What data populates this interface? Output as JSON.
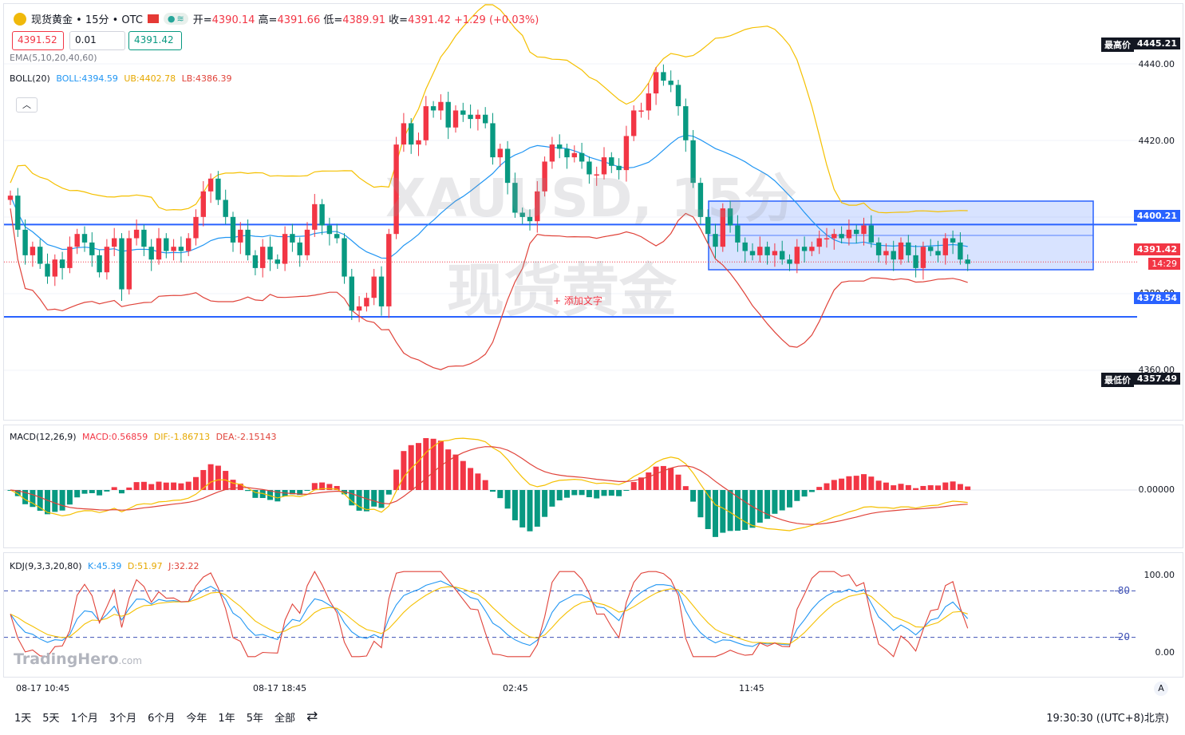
{
  "header": {
    "title": "现货黄金 • 15分 • OTC",
    "open_label": "开=",
    "open": "4390.14",
    "high_label": "高=",
    "high": "4391.66",
    "low_label": "低=",
    "low": "4389.91",
    "close_label": "收=",
    "close": "4391.42",
    "change": "+1.29 (+0.03%)",
    "pill_icon": "dots-icon",
    "pill_text": "≋"
  },
  "trade": {
    "sell": "4391.52",
    "spread": "0.01",
    "buy": "4391.42"
  },
  "indicators": {
    "ema": "EMA(5,10,20,40,60)",
    "boll_label": "BOLL(20)",
    "boll": "BOLL:4394.59",
    "ub": "UB:4402.78",
    "lb": "LB:4386.39",
    "macd_label": "MACD(12,26,9)",
    "macd": "MACD:0.56859",
    "dif": "DIF:-1.86713",
    "dea": "DEA:-2.15143",
    "kdj_label": "KDJ(9,3,3,20,80)",
    "k": "K:45.39",
    "d": "D:51.97",
    "j": "J:32.22"
  },
  "price_axis": {
    "ticks": [
      "4440.00",
      "4420.00",
      "4380.00",
      "4360.00"
    ],
    "max_label": "最高价",
    "max_value": "4445.21",
    "min_label": "最低价",
    "min_value": "4357.49",
    "line_upper": "4400.21",
    "line_lower": "4378.54",
    "current": "4391.42",
    "countdown": "14:29"
  },
  "macd_axis": {
    "zero": "0.00000"
  },
  "kdj_axis": {
    "t100": "100.00",
    "t0": "0.00",
    "l80": "-80",
    "l20": "-20"
  },
  "watermark": {
    "symbol": "XAUUSD, 15分",
    "name": "现货黄金",
    "text_tool": "+ 添加文字",
    "brand": "TradingHero",
    "brand_suffix": ".com"
  },
  "time_axis": {
    "labels": [
      "08-17 10:45",
      "08-17 18:45",
      "02:45",
      "11:45"
    ],
    "right_icon": "A"
  },
  "bottom": {
    "ranges": [
      "1天",
      "5天",
      "1个月",
      "3个月",
      "6个月",
      "今年",
      "1年",
      "5年",
      "全部"
    ],
    "time": "19:30:30 ((UTC+8)北京)"
  },
  "colors": {
    "up": "#f23645",
    "down": "#089981",
    "boll_mid": "#2196f3",
    "boll_up": "#f5c000",
    "boll_low": "#e0433a",
    "line": "#2962ff"
  },
  "chart_data": {
    "type": "candlestick",
    "y_range": [
      4354,
      4452
    ],
    "ohlc_close": [
      4407,
      4399,
      4393,
      4395,
      4391,
      4388,
      4392,
      4390,
      4395,
      4398,
      4396,
      4393,
      4389,
      4395,
      4397,
      4385,
      4397,
      4399,
      4395,
      4392,
      4397,
      4394,
      4395,
      4394,
      4397,
      4402,
      4408,
      4411,
      4406,
      4402,
      4396,
      4399,
      4393,
      4390,
      4395,
      4392,
      4391,
      4398,
      4396,
      4393,
      4399,
      4405,
      4400,
      4398,
      4397,
      4388,
      4380,
      4381,
      4383,
      4388,
      4381,
      4398,
      4419,
      4424,
      4419,
      4420,
      4428,
      4427,
      4429,
      4423,
      4427,
      4426,
      4425,
      4426,
      4424,
      4416,
      4418,
      4410,
      4403,
      4402,
      4401,
      4408,
      4415,
      4419,
      4418,
      4416,
      4417,
      4415,
      4412,
      4412,
      4416,
      4414,
      4413,
      4421,
      4427,
      4427,
      4431,
      4436,
      4434,
      4433,
      4428,
      4420,
      4410,
      4402,
      4398,
      4395,
      4404,
      4400,
      4396,
      4394,
      4393,
      4395,
      4393,
      4394,
      4392,
      4391,
      4395,
      4394,
      4395,
      4397,
      4397,
      4398,
      4397,
      4399,
      4398,
      4400,
      4396,
      4393,
      4394,
      4392,
      4396,
      4393,
      4390,
      4395,
      4394,
      4393,
      4397,
      4396,
      4392,
      4391
    ]
  }
}
